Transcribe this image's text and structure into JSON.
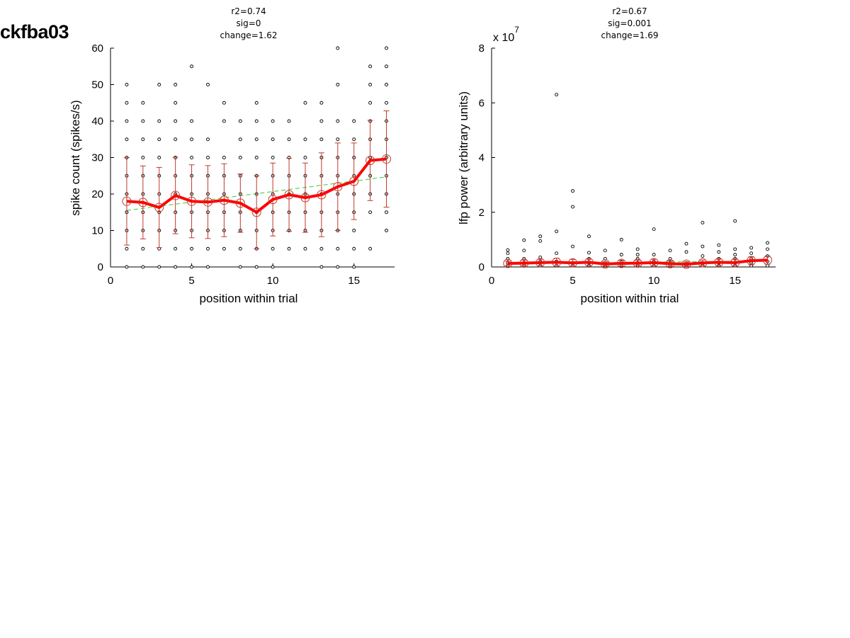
{
  "figure": {
    "label": "ckfba03"
  },
  "chart_data": [
    {
      "type": "scatter",
      "stats": [
        "r2=0.74",
        "sig=0",
        "change=1.62"
      ],
      "xlabel": "position within trial",
      "ylabel": "spike count (spikes/s)",
      "xlim": [
        0,
        17.5
      ],
      "ylim": [
        0,
        60
      ],
      "xticks": [
        0,
        5,
        10,
        15
      ],
      "yticks": [
        0,
        10,
        20,
        30,
        40,
        50,
        60
      ],
      "exponent_label": "",
      "colors": {
        "points": "#000000",
        "mean": "#ff0000",
        "error": "#c0392b",
        "fit": "#33cc33"
      },
      "scatter": [
        {
          "x": 1,
          "y": [
            0,
            5,
            10,
            15,
            20,
            25,
            30,
            35,
            40,
            45,
            50
          ]
        },
        {
          "x": 2,
          "y": [
            0,
            5,
            10,
            15,
            20,
            25,
            30,
            35,
            40,
            45
          ]
        },
        {
          "x": 3,
          "y": [
            0,
            5,
            10,
            15,
            20,
            25,
            30,
            35,
            40,
            50
          ]
        },
        {
          "x": 4,
          "y": [
            0,
            5,
            10,
            15,
            20,
            25,
            30,
            35,
            40,
            45,
            50
          ]
        },
        {
          "x": 5,
          "y": [
            0,
            5,
            10,
            15,
            20,
            25,
            30,
            35,
            40,
            55
          ]
        },
        {
          "x": 6,
          "y": [
            0,
            5,
            10,
            15,
            20,
            25,
            30,
            35,
            50
          ]
        },
        {
          "x": 7,
          "y": [
            5,
            10,
            15,
            20,
            25,
            30,
            40,
            45
          ]
        },
        {
          "x": 8,
          "y": [
            0,
            5,
            10,
            15,
            20,
            25,
            30,
            35,
            40
          ]
        },
        {
          "x": 9,
          "y": [
            0,
            5,
            10,
            15,
            20,
            25,
            30,
            35,
            40,
            45
          ]
        },
        {
          "x": 10,
          "y": [
            0,
            5,
            10,
            15,
            20,
            25,
            30,
            35,
            40
          ]
        },
        {
          "x": 11,
          "y": [
            5,
            10,
            15,
            20,
            25,
            30,
            35,
            40
          ]
        },
        {
          "x": 12,
          "y": [
            5,
            10,
            15,
            20,
            25,
            30,
            35,
            45
          ]
        },
        {
          "x": 13,
          "y": [
            0,
            5,
            10,
            15,
            20,
            25,
            30,
            35,
            40,
            45
          ]
        },
        {
          "x": 14,
          "y": [
            0,
            5,
            10,
            15,
            20,
            25,
            30,
            35,
            40,
            50,
            60
          ]
        },
        {
          "x": 15,
          "y": [
            0,
            5,
            10,
            15,
            20,
            25,
            30,
            35,
            40
          ]
        },
        {
          "x": 16,
          "y": [
            5,
            15,
            20,
            25,
            30,
            35,
            40,
            45,
            50,
            55
          ]
        },
        {
          "x": 17,
          "y": [
            10,
            15,
            20,
            25,
            30,
            35,
            40,
            45,
            50,
            55,
            60
          ]
        }
      ],
      "mean": {
        "x": [
          1,
          2,
          3,
          4,
          5,
          6,
          7,
          8,
          9,
          10,
          11,
          12,
          13,
          14,
          15,
          16,
          17
        ],
        "y": [
          18.0,
          17.7,
          16.3,
          19.6,
          18.0,
          17.8,
          18.3,
          17.5,
          15.0,
          18.5,
          19.8,
          19.0,
          19.8,
          22.0,
          23.5,
          29.2,
          29.6
        ],
        "err": [
          12.0,
          10.0,
          11.0,
          10.5,
          10.0,
          10.0,
          10.0,
          8.0,
          10.0,
          10.0,
          10.0,
          9.5,
          11.5,
          12.0,
          10.5,
          11.0,
          13.2
        ]
      },
      "fit": {
        "x": [
          1,
          17
        ],
        "y": [
          15.5,
          24.7
        ]
      }
    },
    {
      "type": "scatter",
      "stats": [
        "r2=0.67",
        "sig=0.001",
        "change=1.69"
      ],
      "xlabel": "position within trial",
      "ylabel": "lfp power (arbitrary units)",
      "xlim": [
        0,
        17.5
      ],
      "ylim": [
        0,
        8
      ],
      "xticks": [
        0,
        5,
        10,
        15
      ],
      "yticks": [
        0,
        2,
        4,
        6,
        8
      ],
      "exponent_label": "x 10",
      "exponent": "7",
      "colors": {
        "points": "#000000",
        "mean": "#ff0000",
        "error": "#c0392b",
        "fit": "#33cc33"
      },
      "scatter": [
        {
          "x": 1,
          "y": [
            0.05,
            0.15,
            0.3,
            0.5,
            0.62
          ]
        },
        {
          "x": 2,
          "y": [
            0.05,
            0.15,
            0.3,
            0.6,
            0.98
          ]
        },
        {
          "x": 3,
          "y": [
            0.05,
            0.2,
            0.35,
            0.95,
            1.12
          ]
        },
        {
          "x": 4,
          "y": [
            0.05,
            0.2,
            0.5,
            1.3,
            6.3
          ]
        },
        {
          "x": 5,
          "y": [
            0.05,
            0.15,
            0.75,
            2.2,
            2.78
          ]
        },
        {
          "x": 6,
          "y": [
            0.05,
            0.15,
            0.3,
            0.52,
            1.12
          ]
        },
        {
          "x": 7,
          "y": [
            0.05,
            0.15,
            0.3,
            0.6
          ]
        },
        {
          "x": 8,
          "y": [
            0.05,
            0.2,
            0.45,
            1.0
          ]
        },
        {
          "x": 9,
          "y": [
            0.05,
            0.15,
            0.3,
            0.45,
            0.65
          ]
        },
        {
          "x": 10,
          "y": [
            0.05,
            0.2,
            0.45,
            1.38
          ]
        },
        {
          "x": 11,
          "y": [
            0.05,
            0.15,
            0.3,
            0.6
          ]
        },
        {
          "x": 12,
          "y": [
            0.05,
            0.15,
            0.55,
            0.85
          ]
        },
        {
          "x": 13,
          "y": [
            0.05,
            0.15,
            0.4,
            0.75,
            1.62
          ]
        },
        {
          "x": 14,
          "y": [
            0.05,
            0.15,
            0.3,
            0.55,
            0.8
          ]
        },
        {
          "x": 15,
          "y": [
            0.05,
            0.15,
            0.3,
            0.45,
            0.65,
            1.68
          ]
        },
        {
          "x": 16,
          "y": [
            0.05,
            0.15,
            0.3,
            0.5,
            0.7
          ]
        },
        {
          "x": 17,
          "y": [
            0.05,
            0.2,
            0.4,
            0.65,
            0.88
          ]
        }
      ],
      "mean": {
        "x": [
          1,
          2,
          3,
          4,
          5,
          6,
          7,
          8,
          9,
          10,
          11,
          12,
          13,
          14,
          15,
          16,
          17
        ],
        "y": [
          0.13,
          0.14,
          0.16,
          0.17,
          0.15,
          0.17,
          0.11,
          0.13,
          0.14,
          0.16,
          0.12,
          0.1,
          0.15,
          0.17,
          0.16,
          0.23,
          0.25
        ],
        "err": [
          0.08,
          0.1,
          0.12,
          0.15,
          0.12,
          0.12,
          0.08,
          0.1,
          0.1,
          0.12,
          0.1,
          0.08,
          0.1,
          0.12,
          0.12,
          0.15,
          0.15
        ]
      },
      "fit": {
        "x": [
          1,
          17
        ],
        "y": [
          0.12,
          0.22
        ]
      }
    }
  ]
}
